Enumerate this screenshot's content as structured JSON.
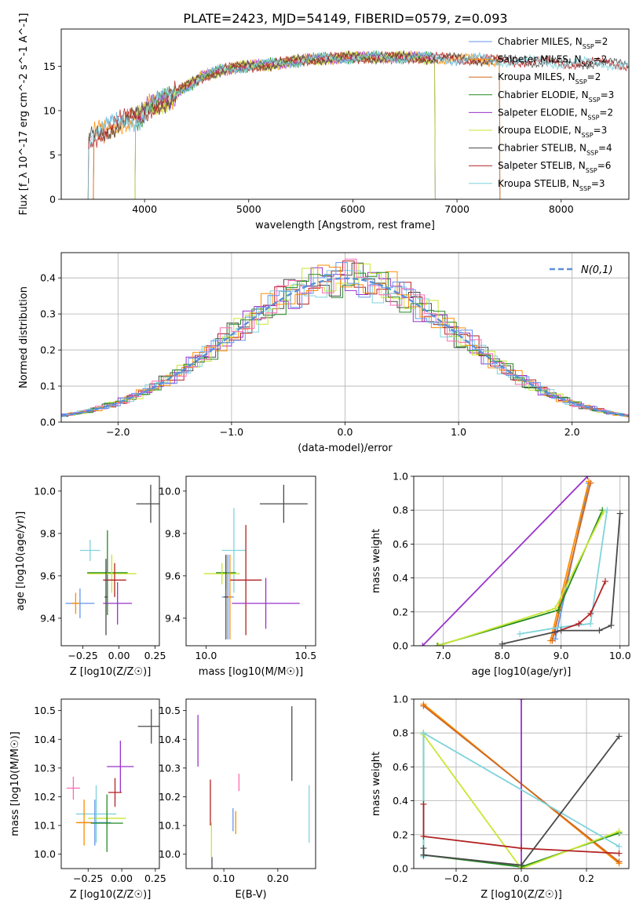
{
  "figure": {
    "title": "PLATE=2423, MJD=54149, FIBERID=0579, z=0.093"
  },
  "chart_data": [
    {
      "id": "spectrum",
      "type": "line",
      "xlabel": "wavelength [Angstrom, rest frame]",
      "ylabel": "Flux [f_λ 10^-17 erg cm^-2 s^-1 A^-1]",
      "xlim": [
        3200,
        8650
      ],
      "ylim": [
        0,
        19.2
      ],
      "xticks": [
        4000,
        5000,
        6000,
        7000,
        8000
      ],
      "yticks": [
        0,
        5,
        10,
        15
      ],
      "grid": false,
      "legend_position": "upper-right",
      "data_points": [
        [
          3450,
          6.6
        ],
        [
          3550,
          7.5
        ],
        [
          3650,
          8.0
        ],
        [
          3750,
          8.6
        ],
        [
          3850,
          9.0
        ],
        [
          3950,
          9.2
        ],
        [
          4050,
          10.4
        ],
        [
          4150,
          11.0
        ],
        [
          4250,
          11.4
        ],
        [
          4350,
          12.4
        ],
        [
          4450,
          13.0
        ],
        [
          4550,
          13.8
        ],
        [
          4650,
          14.2
        ],
        [
          4750,
          14.6
        ],
        [
          4850,
          14.8
        ],
        [
          5000,
          15.0
        ],
        [
          5200,
          15.2
        ],
        [
          5400,
          15.5
        ],
        [
          5600,
          15.8
        ],
        [
          5800,
          15.9
        ],
        [
          6000,
          16.0
        ],
        [
          6200,
          16.0
        ],
        [
          6400,
          16.0
        ],
        [
          6600,
          16.0
        ],
        [
          6800,
          15.9
        ],
        [
          7000,
          15.8
        ],
        [
          7200,
          15.8
        ],
        [
          7400,
          15.6
        ],
        [
          7600,
          15.6
        ],
        [
          7800,
          15.5
        ],
        [
          8000,
          15.3
        ],
        [
          8200,
          15.4
        ],
        [
          8400,
          15.3
        ],
        [
          8600,
          15.2
        ]
      ],
      "series": [
        {
          "name": "Chabrier MILES, NSSP=2",
          "label_main": "Chabrier MILES, N",
          "label_sub": "SSP",
          "label_tail": "=2",
          "color": "#6495ed",
          "xmin": 3500,
          "xmax": 7420
        },
        {
          "name": "Salpeter MILES, NSSP=2",
          "label_main": "Salpeter MILES, N",
          "label_sub": "SSP",
          "label_tail": "=2",
          "color": "#ff8c00",
          "xmin": 3500,
          "xmax": 7420
        },
        {
          "name": "Kroupa MILES, NSSP=2",
          "label_main": "Kroupa MILES, N",
          "label_sub": "SSP",
          "label_tail": "=2",
          "color": "#d2691e",
          "xmin": 3500,
          "xmax": 7420
        },
        {
          "name": "Chabrier ELODIE, NSSP=3",
          "label_main": "Chabrier ELODIE, N",
          "label_sub": "SSP",
          "label_tail": "=3",
          "color": "#228b22",
          "xmin": 3900,
          "xmax": 6800
        },
        {
          "name": "Salpeter ELODIE, NSSP=2",
          "label_main": "Salpeter ELODIE, N",
          "label_sub": "SSP",
          "label_tail": "=2",
          "color": "#9932cc",
          "xmin": 3900,
          "xmax": 6800
        },
        {
          "name": "Kroupa ELODIE, NSSP=3",
          "label_main": "Kroupa ELODIE, N",
          "label_sub": "SSP",
          "label_tail": "=3",
          "color": "#c8e632",
          "xmin": 3900,
          "xmax": 6800
        },
        {
          "name": "Chabrier STELIB, NSSP=4",
          "label_main": "Chabrier STELIB, N",
          "label_sub": "SSP",
          "label_tail": "=4",
          "color": "#4a4a4a",
          "xmin": 3450,
          "xmax": 8650
        },
        {
          "name": "Salpeter STELIB, NSSP=6",
          "label_main": "Salpeter STELIB, N",
          "label_sub": "SSP",
          "label_tail": "=6",
          "color": "#b22222",
          "xmin": 3450,
          "xmax": 8650
        },
        {
          "name": "Kroupa STELIB, NSSP=3",
          "label_main": "Kroupa STELIB, N",
          "label_sub": "SSP",
          "label_tail": "=3",
          "color": "#7fd3dc",
          "xmin": 3450,
          "xmax": 8650
        }
      ]
    },
    {
      "id": "residuals",
      "type": "line",
      "xlabel": "(data-model)/error",
      "ylabel": "Normed distribution",
      "xlim": [
        -2.5,
        2.5
      ],
      "ylim": [
        0,
        0.47
      ],
      "xticks": [
        -2,
        -1,
        0,
        1,
        2
      ],
      "yticks": [
        0.0,
        0.1,
        0.2,
        0.3,
        0.4
      ],
      "grid": true,
      "legend_position": "upper-right",
      "legend_label": "N(0,1)",
      "gaussian_color": "#5b8fd6",
      "histogram_colors": [
        "#4a4a4a",
        "#b22222",
        "#9932cc",
        "#c8e632",
        "#7fd3dc",
        "#ff8c00",
        "#228b22",
        "#ff69b4",
        "#6495ed"
      ]
    },
    {
      "id": "age_vs_Z",
      "type": "scatter",
      "xlabel": "Z [log10(Z/Z☉)]",
      "ylabel": "age [log10(age/yr)]",
      "xlim": [
        -0.4,
        0.28
      ],
      "ylim": [
        9.27,
        10.07
      ],
      "xticks": [
        -0.25,
        0.0,
        0.25
      ],
      "yticks": [
        9.4,
        9.6,
        9.8,
        10.0
      ],
      "grid": false,
      "points": [
        {
          "x": 0.22,
          "y": 9.94,
          "xerr": 0.1,
          "yerr": 0.09,
          "color": "#4a4a4a"
        },
        {
          "x": -0.2,
          "y": 9.72,
          "xerr": 0.07,
          "yerr": 0.05,
          "color": "#7fd3dc"
        },
        {
          "x": -0.08,
          "y": 9.615,
          "xerr": 0.14,
          "yerr": 0.2,
          "color": "#228b22"
        },
        {
          "x": -0.05,
          "y": 9.61,
          "xerr": 0.17,
          "yerr": 0.09,
          "color": "#c8e632"
        },
        {
          "x": -0.03,
          "y": 9.58,
          "xerr": 0.08,
          "yerr": 0.08,
          "color": "#b22222"
        },
        {
          "x": -0.01,
          "y": 9.47,
          "xerr": 0.1,
          "yerr": 0.1,
          "color": "#9932cc"
        },
        {
          "x": -0.27,
          "y": 9.47,
          "xerr": 0.1,
          "yerr": 0.07,
          "color": "#6495ed"
        },
        {
          "x": -0.3,
          "y": 9.47,
          "xerr": 0.03,
          "yerr": 0.05,
          "color": "#ff8c00"
        },
        {
          "x": -0.09,
          "y": 9.5,
          "xerr": 0.01,
          "yerr": 0.18,
          "color": "#4a4a4a"
        }
      ]
    },
    {
      "id": "age_vs_mass",
      "type": "scatter",
      "xlabel": "mass [log10(M/M☉)]",
      "ylabel": "",
      "xlim": [
        9.9,
        10.55
      ],
      "ylim": [
        9.27,
        10.07
      ],
      "xticks": [
        10.0,
        10.5
      ],
      "yticks": [
        9.4,
        9.6,
        9.8,
        10.0
      ],
      "grid": false,
      "points": [
        {
          "x": 10.39,
          "y": 9.94,
          "xerr": 0.12,
          "yerr": 0.09,
          "color": "#4a4a4a"
        },
        {
          "x": 10.14,
          "y": 9.72,
          "xerr": 0.06,
          "yerr": 0.2,
          "color": "#7fd3dc"
        },
        {
          "x": 10.1,
          "y": 9.615,
          "xerr": 0.05,
          "yerr": 0.08,
          "color": "#228b22"
        },
        {
          "x": 10.08,
          "y": 9.61,
          "xerr": 0.09,
          "yerr": 0.05,
          "color": "#c8e632"
        },
        {
          "x": 10.2,
          "y": 9.58,
          "xerr": 0.08,
          "yerr": 0.26,
          "color": "#b22222"
        },
        {
          "x": 10.3,
          "y": 9.47,
          "xerr": 0.17,
          "yerr": 0.12,
          "color": "#9932cc"
        },
        {
          "x": 10.11,
          "y": 9.5,
          "xerr": 0.03,
          "yerr": 0.2,
          "color": "#6495ed"
        },
        {
          "x": 10.12,
          "y": 9.5,
          "xerr": 0.01,
          "yerr": 0.2,
          "color": "#ff8c00"
        },
        {
          "x": 10.1,
          "y": 9.5,
          "xerr": 0.01,
          "yerr": 0.2,
          "color": "#4a4a4a"
        }
      ]
    },
    {
      "id": "weight_vs_age",
      "type": "line",
      "xlabel": "age [log10(age/yr)]",
      "ylabel": "mass weight",
      "xlim": [
        6.5,
        10.15
      ],
      "ylim": [
        0,
        1
      ],
      "xticks": [
        7,
        8,
        9,
        10
      ],
      "yticks": [
        0.0,
        0.2,
        0.4,
        0.6,
        0.8,
        1.0
      ],
      "grid": true,
      "series": [
        {
          "color": "#9932cc",
          "points": [
            [
              6.65,
              0.0
            ],
            [
              9.45,
              1.0
            ]
          ]
        },
        {
          "color": "#6495ed",
          "points": [
            [
              8.9,
              0.04
            ],
            [
              9.47,
              0.96
            ]
          ]
        },
        {
          "color": "#ff8c00",
          "points": [
            [
              8.82,
              0.03
            ],
            [
              9.47,
              0.97
            ]
          ]
        },
        {
          "color": "#d2691e",
          "points": [
            [
              8.85,
              0.03
            ],
            [
              9.5,
              0.96
            ]
          ]
        },
        {
          "color": "#228b22",
          "points": [
            [
              6.9,
              0.0
            ],
            [
              8.95,
              0.21
            ],
            [
              9.7,
              0.8
            ]
          ]
        },
        {
          "color": "#c8e632",
          "points": [
            [
              6.92,
              0.0
            ],
            [
              8.9,
              0.22
            ],
            [
              9.72,
              0.79
            ]
          ]
        },
        {
          "color": "#7fd3dc",
          "points": [
            [
              8.3,
              0.07
            ],
            [
              9.0,
              0.11
            ],
            [
              9.5,
              0.13
            ],
            [
              9.78,
              0.8
            ]
          ]
        },
        {
          "color": "#b22222",
          "points": [
            [
              8.9,
              0.08
            ],
            [
              9.3,
              0.13
            ],
            [
              9.5,
              0.19
            ],
            [
              9.75,
              0.38
            ]
          ]
        },
        {
          "color": "#4a4a4a",
          "points": [
            [
              8.0,
              0.01
            ],
            [
              9.0,
              0.09
            ],
            [
              9.65,
              0.09
            ],
            [
              9.85,
              0.12
            ],
            [
              10.0,
              0.78
            ]
          ]
        }
      ]
    },
    {
      "id": "mass_vs_Z",
      "type": "scatter",
      "xlabel": "Z [log10(Z/Z☉)]",
      "ylabel": "mass [log10(M/M☉)]",
      "xlim": [
        -0.45,
        0.28
      ],
      "ylim": [
        9.95,
        10.54
      ],
      "xticks": [
        -0.25,
        0.0,
        0.25
      ],
      "yticks": [
        10.0,
        10.1,
        10.2,
        10.3,
        10.4,
        10.5
      ],
      "grid": false,
      "points": [
        {
          "x": 0.22,
          "y": 10.445,
          "xerr": 0.1,
          "yerr": 0.06,
          "color": "#4a4a4a"
        },
        {
          "x": -0.01,
          "y": 10.305,
          "xerr": 0.1,
          "yerr": 0.09,
          "color": "#9932cc"
        },
        {
          "x": -0.36,
          "y": 10.23,
          "xerr": 0.05,
          "yerr": 0.04,
          "color": "#ff69b4"
        },
        {
          "x": -0.05,
          "y": 10.215,
          "xerr": 0.05,
          "yerr": 0.05,
          "color": "#b22222"
        },
        {
          "x": -0.19,
          "y": 10.14,
          "xerr": 0.15,
          "yerr": 0.1,
          "color": "#7fd3dc"
        },
        {
          "x": -0.11,
          "y": 10.125,
          "xerr": 0.14,
          "yerr": 0.03,
          "color": "#c8e632"
        },
        {
          "x": -0.2,
          "y": 10.11,
          "xerr": 0.12,
          "yerr": 0.08,
          "color": "#6495ed"
        },
        {
          "x": -0.28,
          "y": 10.11,
          "xerr": 0.06,
          "yerr": 0.08,
          "color": "#ff8c00"
        },
        {
          "x": -0.11,
          "y": 10.108,
          "xerr": 0.12,
          "yerr": 0.1,
          "color": "#228b22"
        }
      ]
    },
    {
      "id": "mass_vs_ebv",
      "type": "scatter",
      "xlabel": "E(B-V)",
      "ylabel": "",
      "xlim": [
        0.03,
        0.27
      ],
      "ylim": [
        9.95,
        10.54
      ],
      "xticks": [
        0.1,
        0.2
      ],
      "yticks": [
        10.0,
        10.1,
        10.2,
        10.3,
        10.4,
        10.5
      ],
      "grid": false,
      "points": [
        {
          "x": 0.226,
          "y": 10.385,
          "xerr": 0,
          "yerr": 0.13,
          "color": "#4a4a4a"
        },
        {
          "x": 0.052,
          "y": 10.395,
          "xerr": 0,
          "yerr": 0.09,
          "color": "#9932cc"
        },
        {
          "x": 0.128,
          "y": 10.25,
          "xerr": 0,
          "yerr": 0.03,
          "color": "#ff69b4"
        },
        {
          "x": 0.075,
          "y": 10.18,
          "xerr": 0,
          "yerr": 0.08,
          "color": "#b22222"
        },
        {
          "x": 0.258,
          "y": 10.14,
          "xerr": 0,
          "yerr": 0.1,
          "color": "#7fd3dc"
        },
        {
          "x": 0.077,
          "y": 10.05,
          "xerr": 0,
          "yerr": 0.06,
          "color": "#c8e632"
        },
        {
          "x": 0.117,
          "y": 10.12,
          "xerr": 0,
          "yerr": 0.04,
          "color": "#6495ed"
        },
        {
          "x": 0.122,
          "y": 10.11,
          "xerr": 0,
          "yerr": 0.04,
          "color": "#ff8c00"
        },
        {
          "x": 0.078,
          "y": 9.97,
          "xerr": 0,
          "yerr": 0.02,
          "color": "#4a4a4a"
        }
      ]
    },
    {
      "id": "weight_vs_Z",
      "type": "line",
      "xlabel": "Z [log10(Z/Z☉)]",
      "ylabel": "mass weight",
      "xlim": [
        -0.33,
        0.33
      ],
      "ylim": [
        0,
        1
      ],
      "xticks": [
        -0.2,
        0.0,
        0.2
      ],
      "yticks": [
        0.0,
        0.2,
        0.4,
        0.6,
        0.8,
        1.0
      ],
      "grid": true,
      "series": [
        {
          "color": "#6495ed",
          "points": [
            [
              -0.3,
              0.96
            ],
            [
              0.3,
              0.04
            ]
          ]
        },
        {
          "color": "#ff8c00",
          "points": [
            [
              -0.3,
              0.97
            ],
            [
              0.3,
              0.03
            ]
          ]
        },
        {
          "color": "#d2691e",
          "points": [
            [
              -0.3,
              0.96
            ],
            [
              0.3,
              0.04
            ]
          ]
        },
        {
          "color": "#9932cc",
          "points": [
            [
              0.0,
              0.0
            ],
            [
              0.0,
              1.0
            ]
          ]
        },
        {
          "color": "#228b22",
          "points": [
            [
              -0.3,
              0.8
            ],
            [
              -0.3,
              0.08
            ],
            [
              0.0,
              0.01
            ],
            [
              0.3,
              0.21
            ]
          ]
        },
        {
          "color": "#c8e632",
          "points": [
            [
              -0.3,
              0.79
            ],
            [
              0.0,
              0.0
            ],
            [
              0.3,
              0.22
            ]
          ]
        },
        {
          "color": "#7fd3dc",
          "points": [
            [
              -0.3,
              0.07
            ],
            [
              -0.3,
              0.8
            ],
            [
              0.3,
              0.13
            ]
          ]
        },
        {
          "color": "#b22222",
          "points": [
            [
              -0.3,
              0.38
            ],
            [
              -0.3,
              0.19
            ],
            [
              0.0,
              0.12
            ],
            [
              0.3,
              0.09
            ]
          ]
        },
        {
          "color": "#4a4a4a",
          "points": [
            [
              -0.3,
              0.12
            ],
            [
              -0.3,
              0.08
            ],
            [
              0.0,
              0.02
            ],
            [
              0.3,
              0.78
            ]
          ]
        }
      ]
    }
  ]
}
